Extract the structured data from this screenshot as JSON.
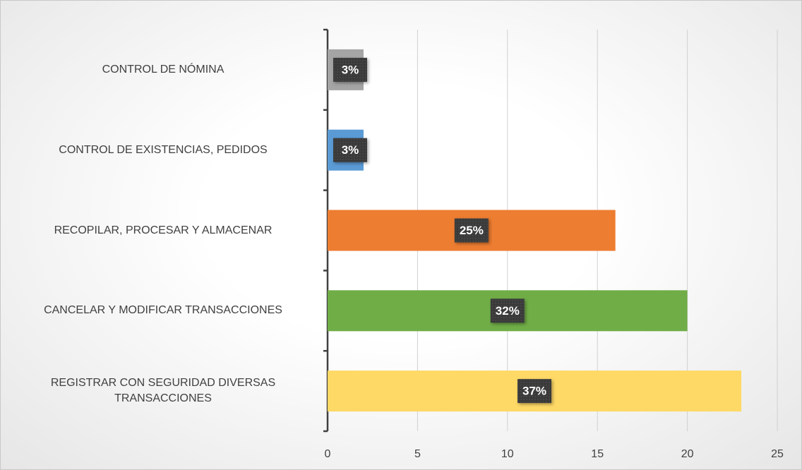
{
  "chart_data": {
    "type": "hbar",
    "categories": [
      "CONTROL DE NÓMINA",
      "CONTROL DE EXISTENCIAS, PEDIDOS",
      "RECOPILAR, PROCESAR Y ALMACENAR",
      "CANCELAR Y MODIFICAR TRANSACCIONES",
      "REGISTRAR CON SEGURIDAD DIVERSAS\nTRANSACCIONES"
    ],
    "values": [
      2,
      2,
      16,
      20,
      23
    ],
    "data_labels": [
      "3%",
      "3%",
      "25%",
      "32%",
      "37%"
    ],
    "colors": [
      "#a5a5a5",
      "#5b9bd5",
      "#ed7d31",
      "#70ad47",
      "#ffd966"
    ],
    "xlim": [
      0,
      25
    ],
    "xticks": [
      0,
      5,
      10,
      15,
      20,
      25
    ],
    "grid": true
  }
}
